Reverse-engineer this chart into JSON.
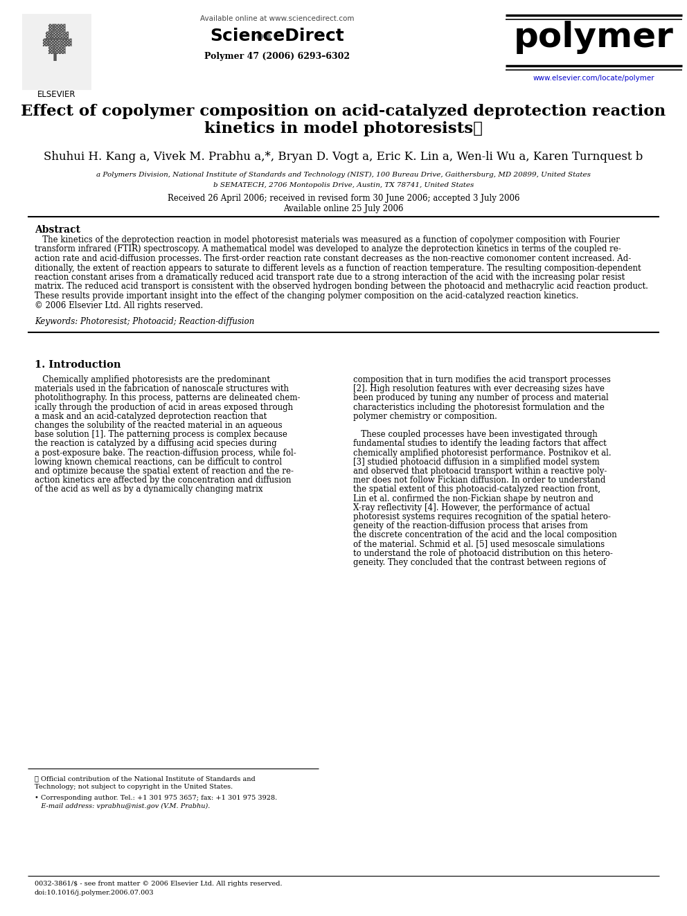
{
  "background_color": "#ffffff",
  "header": {
    "available_online_text": "Available online at www.sciencedirect.com",
    "sciencedirect_text": "ScienceDirect",
    "journal_name": "polymer",
    "journal_info": "Polymer 47 (2006) 6293–6302",
    "journal_url": "www.elsevier.com/locate/polymer"
  },
  "title_line1": "Effect of copolymer composition on acid-catalyzed deprotection reaction",
  "title_line2": "kinetics in model photoresists⋆",
  "authors": "Shuhui H. Kang a, Vivek M. Prabhu a,*, Bryan D. Vogt a, Eric K. Lin a, Wen-li Wu a, Karen Turnquest b",
  "affiliation_a": "a Polymers Division, National Institute of Standards and Technology (NIST), 100 Bureau Drive, Gaithersburg, MD 20899, United States",
  "affiliation_b": "b SEMATECH, 2706 Montopolis Drive, Austin, TX 78741, United States",
  "received_text": "Received 26 April 2006; received in revised form 30 June 2006; accepted 3 July 2006",
  "available_text": "Available online 25 July 2006",
  "abstract_title": "Abstract",
  "keywords_text": "Keywords: Photoresist; Photoacid; Reaction-diffusion",
  "section1_title": "1. Introduction",
  "footnote_star_line1": "⋆ Official contribution of the National Institute of Standards and",
  "footnote_star_line2": "Technology; not subject to copyright in the United States.",
  "footnote_corr1": "• Corresponding author. Tel.: +1 301 975 3657; fax: +1 301 975 3928.",
  "footnote_corr2": "   E-mail address: vprabhu@nist.gov (V.M. Prabhu).",
  "footer_line1": "0032-3861/$ - see front matter © 2006 Elsevier Ltd. All rights reserved.",
  "footer_line2": "doi:10.1016/j.polymer.2006.07.003",
  "elsevier_text": "ELSEVIER",
  "polymer_color": "#000000",
  "url_color": "#0000cc",
  "ref_color": "#0000cc"
}
